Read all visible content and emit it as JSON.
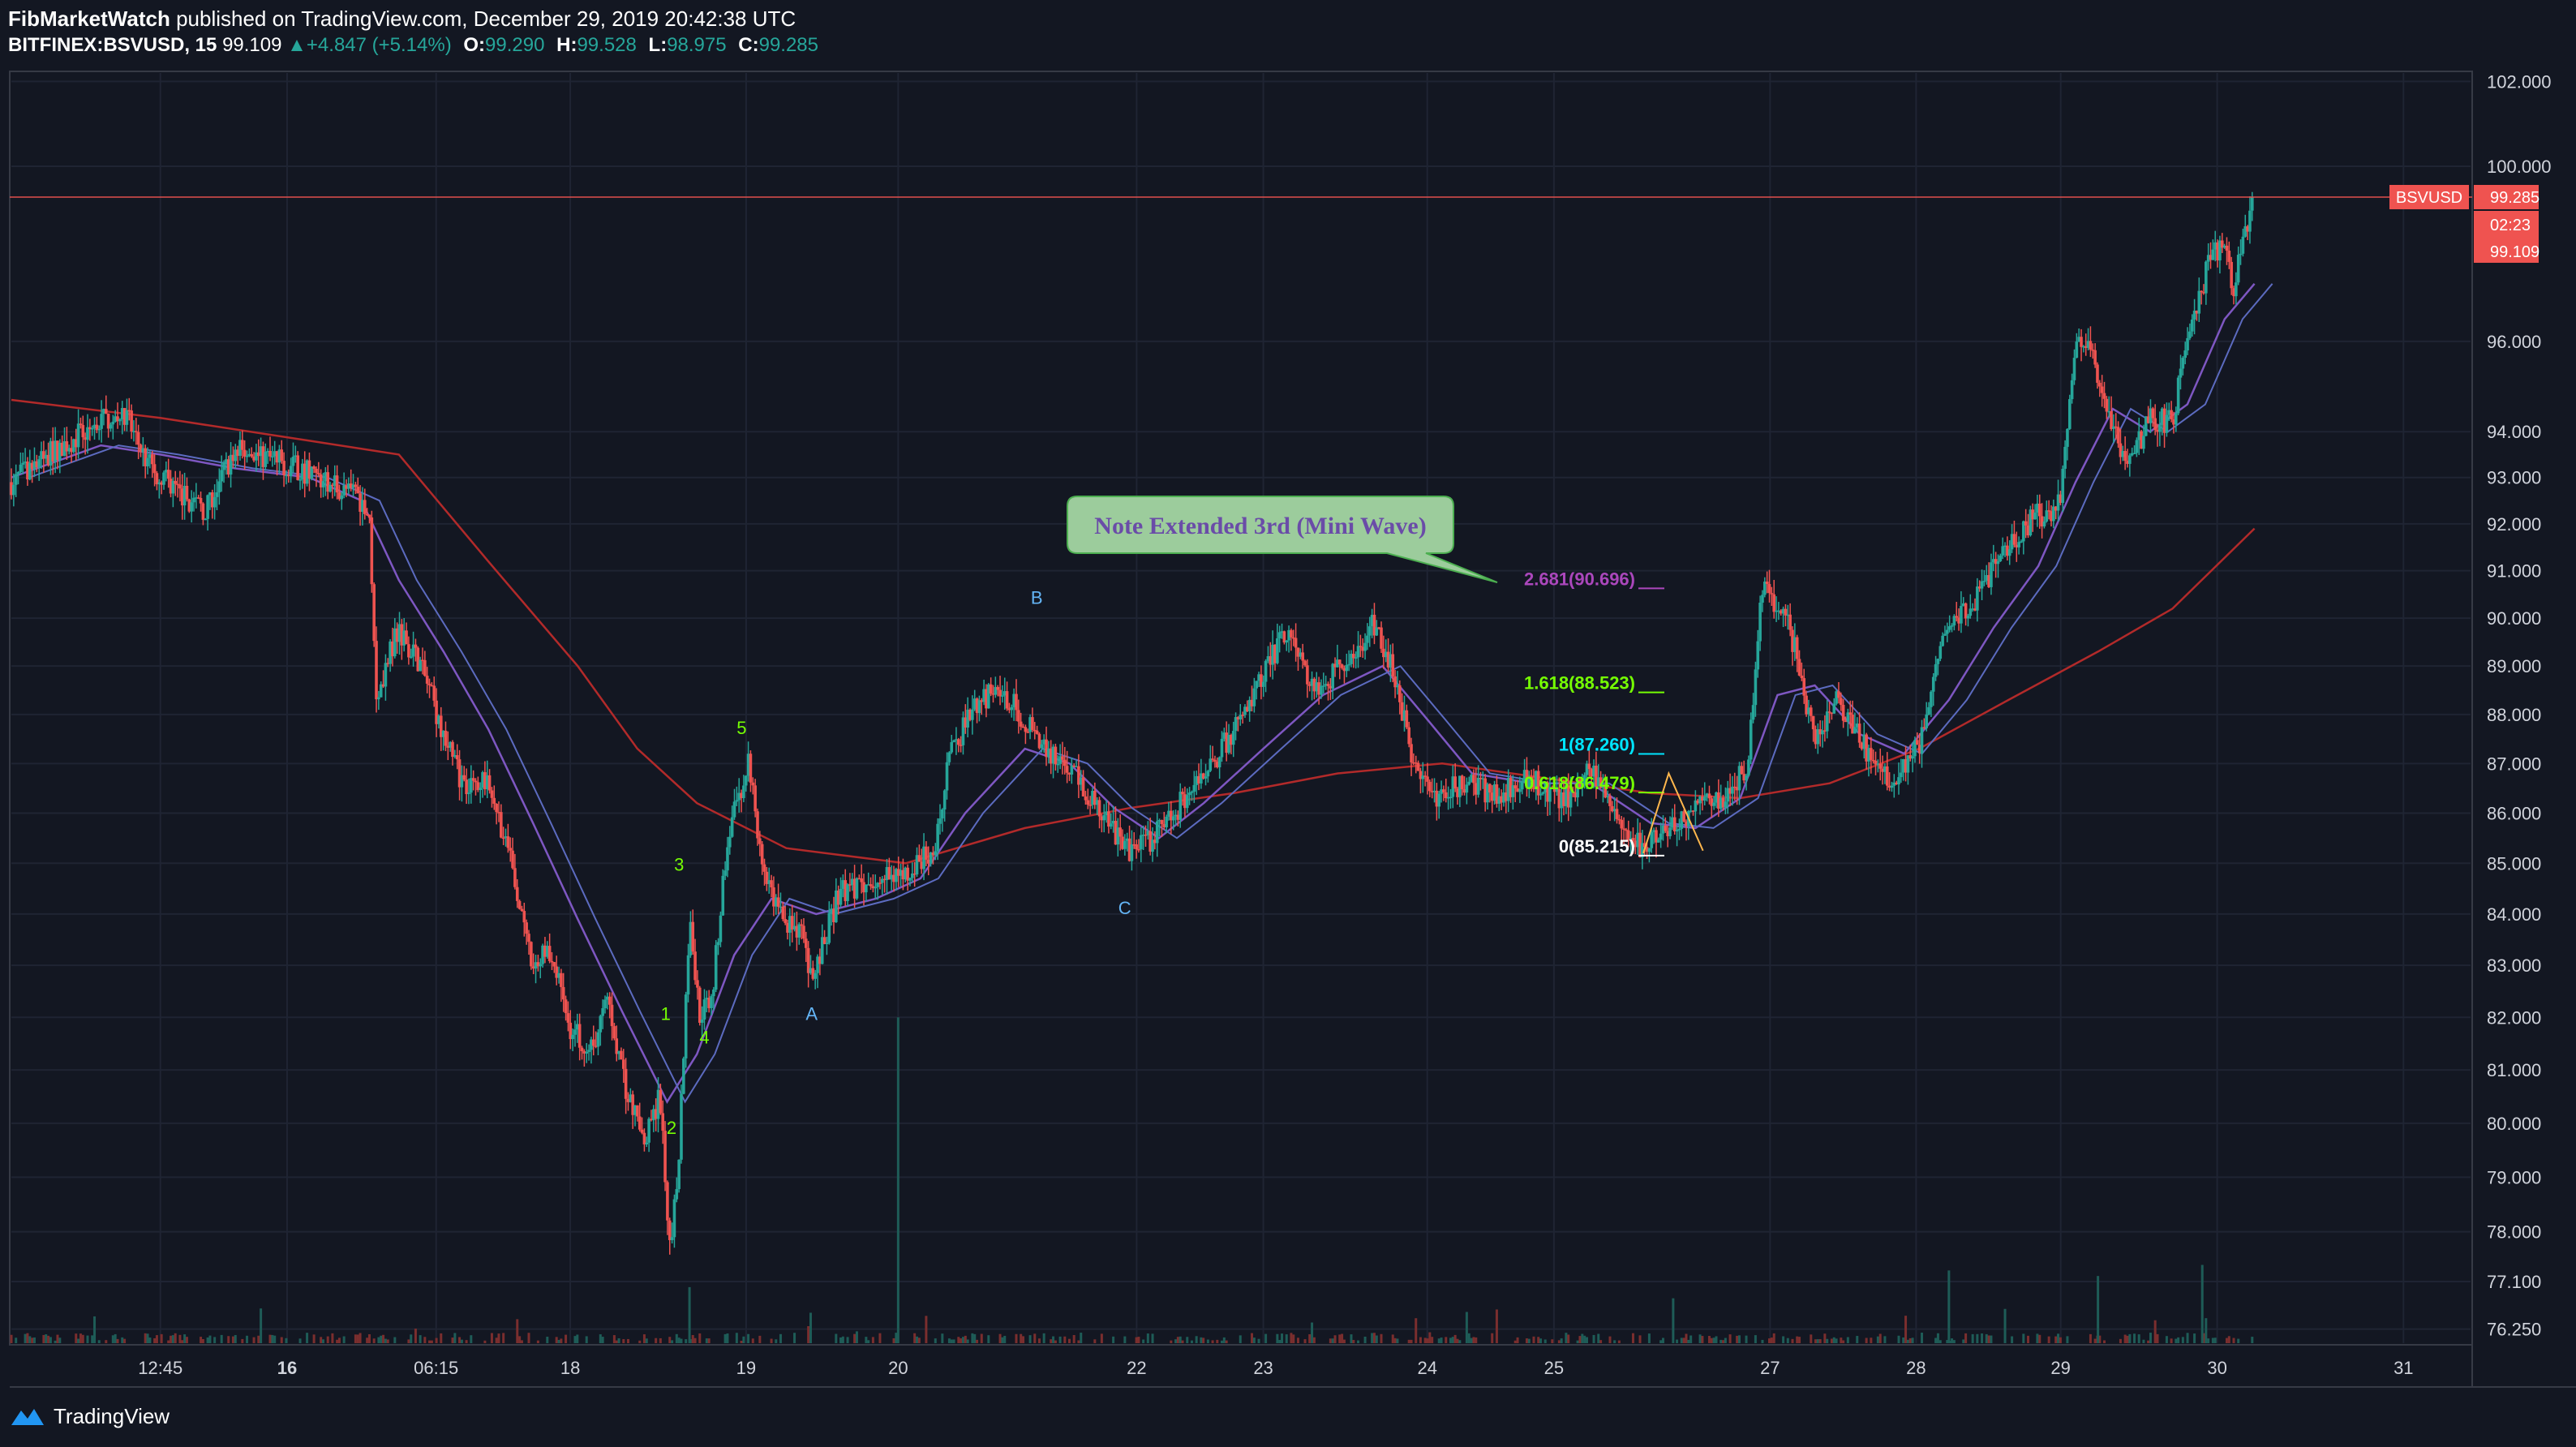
{
  "header": {
    "author": "FibMarketWatch",
    "published_text": "published on TradingView.com, December 29, 2019 20:42:38 UTC",
    "symbol": "BITFINEX:BSVUSD, 15",
    "last": "99.109",
    "change_arrow": "▲",
    "change": "+4.847 (+5.14%)",
    "o_label": "O:",
    "o_value": "99.290",
    "h_label": "H:",
    "h_value": "99.528",
    "l_label": "L:",
    "l_value": "98.975",
    "c_label": "C:",
    "c_value": "99.285"
  },
  "price_labels": {
    "symbol_tag": "BSVUSD",
    "current_price": "99.285",
    "countdown": "02:23",
    "last_price": "99.109"
  },
  "annotations": {
    "callout": "Note Extended 3rd (Mini Wave)",
    "fib_levels": [
      {
        "text": "2.681(90.696)",
        "price": 90.696,
        "color": "#ab47bc"
      },
      {
        "text": "1.618(88.523)",
        "price": 88.523,
        "color": "#76ff03"
      },
      {
        "text": "1(87.260)",
        "price": 87.26,
        "color": "#00e5ff"
      },
      {
        "text": "0.618(86.479)",
        "price": 86.479,
        "color": "#76ff03"
      },
      {
        "text": "0(85.215)",
        "price": 85.215,
        "color": "#ffffff"
      }
    ],
    "wave_labels": [
      {
        "text": "5",
        "price": 87.6,
        "time": 4.9,
        "color": "#76ff03"
      },
      {
        "text": "3",
        "price": 84.85,
        "time": 4.48,
        "color": "#76ff03"
      },
      {
        "text": "1",
        "price": 81.95,
        "time": 4.39,
        "color": "#76ff03"
      },
      {
        "text": "4",
        "price": 81.5,
        "time": 4.65,
        "color": "#76ff03"
      },
      {
        "text": "2",
        "price": 79.8,
        "time": 4.43,
        "color": "#76ff03"
      },
      {
        "text": "A",
        "price": 81.95,
        "time": 5.37,
        "color": "#64b5f6"
      },
      {
        "text": "B",
        "price": 90.3,
        "time": 6.88,
        "color": "#64b5f6"
      },
      {
        "text": "C",
        "price": 84.0,
        "time": 7.47,
        "color": "#64b5f6"
      }
    ]
  },
  "chart_data": {
    "type": "candlestick",
    "symbol": "BITFINEX:BSVUSD",
    "interval": "15",
    "y_scale": "log",
    "ylim": [
      76.0,
      102.2
    ],
    "y_ticks": [
      "102.000",
      "100.000",
      "96.000",
      "94.000",
      "93.000",
      "92.000",
      "91.000",
      "90.000",
      "89.000",
      "88.000",
      "87.000",
      "86.000",
      "85.000",
      "84.000",
      "83.000",
      "82.000",
      "81.000",
      "80.000",
      "79.000",
      "78.000",
      "77.100",
      "76.250"
    ],
    "x_ticks": [
      "12:45",
      "16",
      "06:15",
      "18",
      "19",
      "20",
      "22",
      "23",
      "24",
      "25",
      "27",
      "28",
      "29",
      "30",
      "31"
    ],
    "x_tick_positions": [
      1.0,
      1.85,
      2.85,
      3.75,
      4.93,
      5.95,
      7.55,
      8.4,
      9.5,
      10.35,
      11.8,
      12.78,
      13.75,
      14.8,
      16.05
    ],
    "xlim": [
      0,
      16.5
    ],
    "close_path": [
      [
        0,
        92.9
      ],
      [
        0.3,
        93.6
      ],
      [
        0.55,
        94.1
      ],
      [
        0.75,
        94.5
      ],
      [
        0.9,
        93.4
      ],
      [
        1.1,
        92.7
      ],
      [
        1.3,
        92.3
      ],
      [
        1.5,
        93.6
      ],
      [
        1.75,
        93.4
      ],
      [
        2.0,
        93.1
      ],
      [
        2.25,
        92.7
      ],
      [
        2.4,
        92.4
      ],
      [
        2.45,
        88.4
      ],
      [
        2.6,
        89.8
      ],
      [
        2.75,
        89.0
      ],
      [
        2.9,
        87.6
      ],
      [
        3.05,
        86.4
      ],
      [
        3.2,
        86.8
      ],
      [
        3.35,
        85.0
      ],
      [
        3.5,
        82.8
      ],
      [
        3.6,
        83.4
      ],
      [
        3.75,
        81.8
      ],
      [
        3.9,
        81.4
      ],
      [
        4.0,
        82.4
      ],
      [
        4.12,
        80.7
      ],
      [
        4.25,
        79.6
      ],
      [
        4.35,
        80.5
      ],
      [
        4.42,
        77.6
      ],
      [
        4.48,
        79.5
      ],
      [
        4.55,
        83.9
      ],
      [
        4.62,
        82.1
      ],
      [
        4.7,
        82.3
      ],
      [
        4.8,
        85.4
      ],
      [
        4.95,
        87.1
      ],
      [
        5.02,
        85.2
      ],
      [
        5.15,
        84.0
      ],
      [
        5.3,
        83.6
      ],
      [
        5.38,
        82.7
      ],
      [
        5.55,
        84.4
      ],
      [
        5.75,
        84.6
      ],
      [
        6.0,
        84.8
      ],
      [
        6.2,
        85.3
      ],
      [
        6.3,
        87.2
      ],
      [
        6.5,
        88.4
      ],
      [
        6.7,
        88.3
      ],
      [
        6.9,
        87.4
      ],
      [
        7.1,
        87.0
      ],
      [
        7.3,
        86.0
      ],
      [
        7.5,
        85.2
      ],
      [
        7.65,
        85.5
      ],
      [
        7.85,
        86.2
      ],
      [
        8.1,
        87.2
      ],
      [
        8.3,
        88.1
      ],
      [
        8.55,
        89.8
      ],
      [
        8.75,
        88.4
      ],
      [
        8.95,
        89.1
      ],
      [
        9.15,
        89.9
      ],
      [
        9.3,
        88.6
      ],
      [
        9.4,
        87.0
      ],
      [
        9.55,
        86.3
      ],
      [
        9.75,
        86.6
      ],
      [
        9.95,
        86.4
      ],
      [
        10.2,
        86.7
      ],
      [
        10.4,
        86.2
      ],
      [
        10.6,
        86.9
      ],
      [
        10.75,
        85.9
      ],
      [
        10.95,
        85.3
      ],
      [
        11.1,
        85.6
      ],
      [
        11.3,
        86.1
      ],
      [
        11.5,
        86.3
      ],
      [
        11.65,
        87.0
      ],
      [
        11.75,
        90.8
      ],
      [
        11.9,
        90.0
      ],
      [
        12.0,
        89.0
      ],
      [
        12.1,
        87.3
      ],
      [
        12.25,
        88.3
      ],
      [
        12.4,
        87.5
      ],
      [
        12.6,
        86.6
      ],
      [
        12.8,
        87.4
      ],
      [
        12.95,
        89.6
      ],
      [
        13.15,
        90.3
      ],
      [
        13.35,
        91.3
      ],
      [
        13.55,
        92.1
      ],
      [
        13.75,
        92.4
      ],
      [
        13.85,
        96.1
      ],
      [
        13.95,
        95.8
      ],
      [
        14.1,
        94.1
      ],
      [
        14.2,
        93.2
      ],
      [
        14.35,
        94.3
      ],
      [
        14.5,
        94.2
      ],
      [
        14.6,
        96.2
      ],
      [
        14.75,
        97.8
      ],
      [
        14.85,
        98.4
      ],
      [
        14.9,
        97.0
      ],
      [
        15.0,
        98.7
      ],
      [
        15.05,
        99.285
      ]
    ],
    "ma_long": [
      [
        0,
        94.7
      ],
      [
        1.0,
        94.3
      ],
      [
        2.0,
        93.8
      ],
      [
        2.6,
        93.5
      ],
      [
        3.2,
        91.2
      ],
      [
        3.8,
        89.0
      ],
      [
        4.2,
        87.3
      ],
      [
        4.6,
        86.2
      ],
      [
        5.2,
        85.3
      ],
      [
        6.0,
        85.0
      ],
      [
        6.8,
        85.7
      ],
      [
        7.5,
        86.1
      ],
      [
        8.2,
        86.4
      ],
      [
        8.9,
        86.8
      ],
      [
        9.6,
        87.0
      ],
      [
        10.3,
        86.7
      ],
      [
        11.0,
        86.4
      ],
      [
        11.6,
        86.3
      ],
      [
        12.2,
        86.6
      ],
      [
        12.8,
        87.3
      ],
      [
        13.4,
        88.3
      ],
      [
        14.0,
        89.3
      ],
      [
        14.5,
        90.2
      ],
      [
        15.05,
        91.9
      ]
    ],
    "ma_short": [
      [
        0,
        93.0
      ],
      [
        0.6,
        93.7
      ],
      [
        1.0,
        93.5
      ],
      [
        1.5,
        93.2
      ],
      [
        2.0,
        93.0
      ],
      [
        2.35,
        92.5
      ],
      [
        2.6,
        90.8
      ],
      [
        2.9,
        89.3
      ],
      [
        3.2,
        87.7
      ],
      [
        3.5,
        85.8
      ],
      [
        3.8,
        83.9
      ],
      [
        4.1,
        82.1
      ],
      [
        4.4,
        80.4
      ],
      [
        4.6,
        81.3
      ],
      [
        4.85,
        83.2
      ],
      [
        5.1,
        84.3
      ],
      [
        5.4,
        84.0
      ],
      [
        5.8,
        84.3
      ],
      [
        6.1,
        84.7
      ],
      [
        6.4,
        86.0
      ],
      [
        6.8,
        87.3
      ],
      [
        7.1,
        87.0
      ],
      [
        7.4,
        86.1
      ],
      [
        7.7,
        85.5
      ],
      [
        8.0,
        86.2
      ],
      [
        8.4,
        87.3
      ],
      [
        8.8,
        88.4
      ],
      [
        9.2,
        89.0
      ],
      [
        9.5,
        87.9
      ],
      [
        9.8,
        86.8
      ],
      [
        10.2,
        86.6
      ],
      [
        10.6,
        86.6
      ],
      [
        11.0,
        85.8
      ],
      [
        11.3,
        85.7
      ],
      [
        11.6,
        86.3
      ],
      [
        11.85,
        88.4
      ],
      [
        12.1,
        88.6
      ],
      [
        12.4,
        87.6
      ],
      [
        12.7,
        87.2
      ],
      [
        13.0,
        88.3
      ],
      [
        13.3,
        89.8
      ],
      [
        13.6,
        91.1
      ],
      [
        13.85,
        92.9
      ],
      [
        14.1,
        94.5
      ],
      [
        14.35,
        94.0
      ],
      [
        14.6,
        94.6
      ],
      [
        14.85,
        96.5
      ],
      [
        15.05,
        97.3
      ]
    ],
    "volume_spikes": [
      [
        5.95,
        82.0
      ],
      [
        4.55,
        77.0
      ],
      [
        11.15,
        76.8
      ],
      [
        13.0,
        77.3
      ],
      [
        14.0,
        77.2
      ],
      [
        14.7,
        77.4
      ]
    ]
  }
}
